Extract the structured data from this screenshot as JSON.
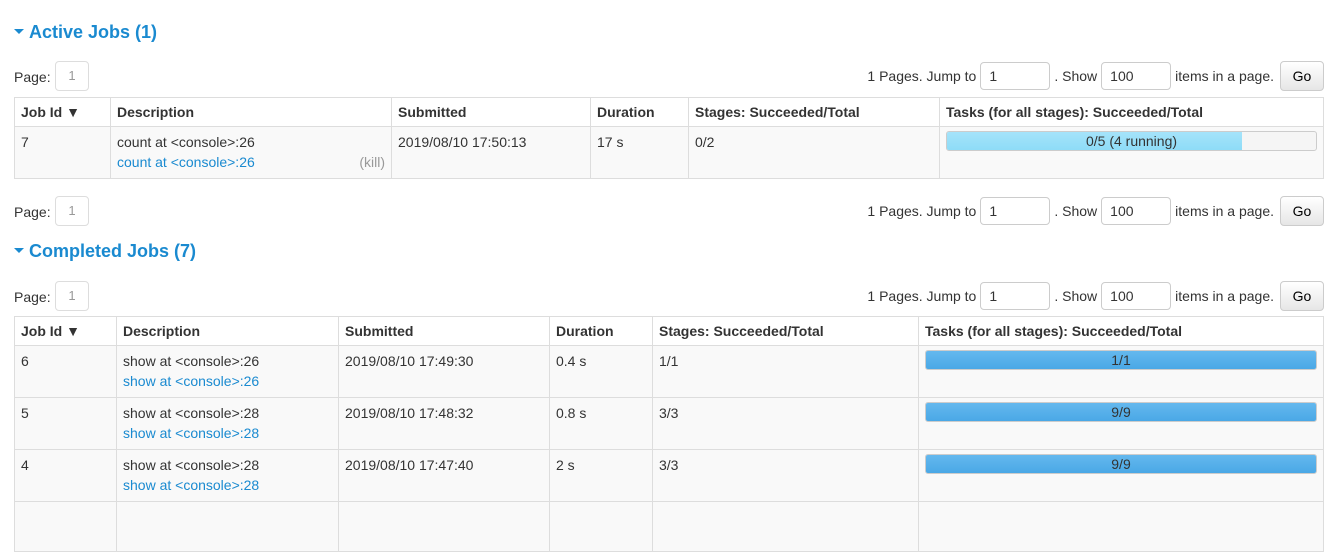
{
  "pager": {
    "page_label": "Page:",
    "page": "1",
    "pages_text": "1 Pages. Jump to",
    "jump_value": "1",
    "show_text": ". Show",
    "show_value": "100",
    "items_text": "items in a page.",
    "go": "Go"
  },
  "active": {
    "title": "Active Jobs (1)",
    "headers": [
      "Job Id ▼",
      "Description",
      "Submitted",
      "Duration",
      "Stages: Succeeded/Total",
      "Tasks (for all stages): Succeeded/Total"
    ],
    "rows": [
      {
        "id": "7",
        "desc": "count at <console>:26",
        "link": "count at <console>:26",
        "kill": "(kill)",
        "submitted": "2019/08/10 17:50:13",
        "duration": "17 s",
        "stages": "0/2",
        "tasks": "0/5 (4 running)",
        "running_fraction": 0.8
      }
    ]
  },
  "completed": {
    "title": "Completed Jobs (7)",
    "headers": [
      "Job Id ▼",
      "Description",
      "Submitted",
      "Duration",
      "Stages: Succeeded/Total",
      "Tasks (for all stages): Succeeded/Total"
    ],
    "rows": [
      {
        "id": "6",
        "desc": "show at <console>:26",
        "link": "show at <console>:26",
        "submitted": "2019/08/10 17:49:30",
        "duration": "0.4 s",
        "stages": "1/1",
        "tasks": "1/1",
        "completed_fraction": 1
      },
      {
        "id": "5",
        "desc": "show at <console>:28",
        "link": "show at <console>:28",
        "submitted": "2019/08/10 17:48:32",
        "duration": "0.8 s",
        "stages": "3/3",
        "tasks": "9/9",
        "completed_fraction": 1
      },
      {
        "id": "4",
        "desc": "show at <console>:28",
        "link": "show at <console>:28",
        "submitted": "2019/08/10 17:47:40",
        "duration": "2 s",
        "stages": "3/3",
        "tasks": "9/9",
        "completed_fraction": 1
      }
    ]
  },
  "colors": {
    "accent": "#1a8ad0",
    "running": "#a5e3fa",
    "completed": "#5bb2ec"
  }
}
